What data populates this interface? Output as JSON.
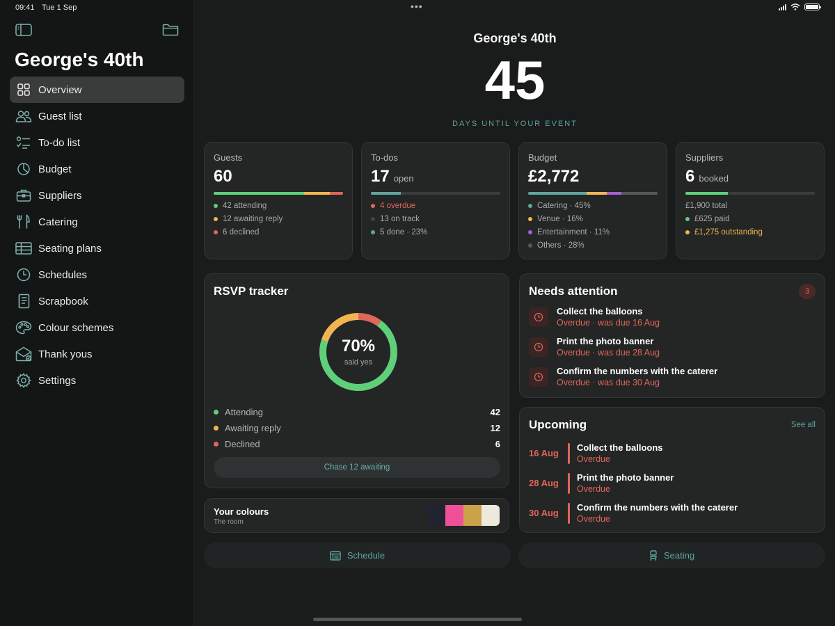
{
  "status_bar": {
    "time": "09:41",
    "date": "Tue 1 Sep",
    "dots": "•••"
  },
  "sidebar": {
    "title": "George's 40th",
    "items": [
      {
        "label": "Overview",
        "icon": "grid-icon"
      },
      {
        "label": "Guest list",
        "icon": "people-icon"
      },
      {
        "label": "To-do list",
        "icon": "checklist-icon"
      },
      {
        "label": "Budget",
        "icon": "pie-chart-icon"
      },
      {
        "label": "Suppliers",
        "icon": "briefcase-icon"
      },
      {
        "label": "Catering",
        "icon": "fork-knife-icon"
      },
      {
        "label": "Seating plans",
        "icon": "table-icon"
      },
      {
        "label": "Schedules",
        "icon": "clock-icon"
      },
      {
        "label": "Scrapbook",
        "icon": "notebook-icon"
      },
      {
        "label": "Colour schemes",
        "icon": "palette-icon"
      },
      {
        "label": "Thank yous",
        "icon": "envelope-icon"
      },
      {
        "label": "Settings",
        "icon": "gear-icon"
      }
    ]
  },
  "header": {
    "event_title": "George's 40th",
    "days": "45",
    "days_label": "DAYS UNTIL YOUR EVENT"
  },
  "stats": {
    "guests": {
      "label": "Guests",
      "value": "60",
      "legend": [
        "42 attending",
        "12 awaiting reply",
        "6 declined"
      ]
    },
    "todos": {
      "label": "To-dos",
      "value": "17",
      "suffix": "open",
      "progress": 0.23,
      "legend": [
        "4 overdue",
        "13 on track",
        "5 done · 23%"
      ]
    },
    "budget": {
      "label": "Budget",
      "value": "£2,772",
      "legend": [
        "Catering · 45%",
        "Venue · 16%",
        "Entertainment · 11%",
        "Others · 28%"
      ]
    },
    "suppliers": {
      "label": "Suppliers",
      "value": "6",
      "suffix": "booked",
      "progress": 0.33,
      "legend": [
        "£1,900 total",
        "£625 paid",
        "£1,275 outstanding"
      ]
    }
  },
  "rsvp": {
    "title": "RSVP tracker",
    "percent": "70%",
    "percent_sub": "said yes",
    "rows": [
      {
        "label": "Attending",
        "count": "42"
      },
      {
        "label": "Awaiting reply",
        "count": "12"
      },
      {
        "label": "Declined",
        "count": "6"
      }
    ],
    "chase_label": "Chase 12 awaiting"
  },
  "attention": {
    "title": "Needs attention",
    "badge": "3",
    "items": [
      {
        "title": "Collect the balloons",
        "sub": "Overdue · was due 16 Aug"
      },
      {
        "title": "Print the photo banner",
        "sub": "Overdue · was due 28 Aug"
      },
      {
        "title": "Confirm the numbers with the caterer",
        "sub": "Overdue · was due 30 Aug"
      }
    ]
  },
  "upcoming": {
    "title": "Upcoming",
    "see_all": "See all",
    "items": [
      {
        "date": "16 Aug",
        "title": "Collect the balloons",
        "sub": "Overdue"
      },
      {
        "date": "28 Aug",
        "title": "Print the photo banner",
        "sub": "Overdue"
      },
      {
        "date": "30 Aug",
        "title": "Confirm the numbers with the caterer",
        "sub": "Overdue"
      }
    ]
  },
  "colours": {
    "title": "Your colours",
    "subtitle": "The room",
    "swatches": [
      "#1f2430",
      "#f0509a",
      "#c9a24a",
      "#efe9dd"
    ]
  },
  "buttons": {
    "schedule": "Schedule",
    "seating": "Seating"
  },
  "palette": {
    "green": "#5fcf7a",
    "amber": "#f0b553",
    "red": "#e0665a",
    "teal": "#5fa59e",
    "purple": "#a55fd6",
    "gray": "#6a6c6c"
  }
}
